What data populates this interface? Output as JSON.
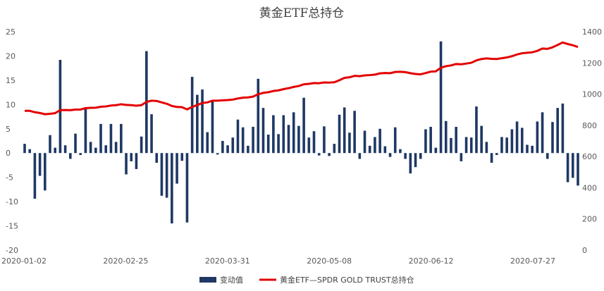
{
  "chart_data": {
    "type": "bar+line",
    "title": "黄金ETF总持仓",
    "x_tick_labels": [
      "2020-01-02",
      "2020-02-25",
      "2020-03-31",
      "2020-05-08",
      "2020-06-12",
      "2020-07-27"
    ],
    "y_left": {
      "min": -20,
      "max": 25,
      "step": 5,
      "ticks": [
        "-20",
        "-15",
        "-10",
        "-5",
        "0",
        "5",
        "10",
        "15",
        "20",
        "25"
      ]
    },
    "y_right": {
      "min": 0,
      "max": 1400,
      "step": 200,
      "ticks": [
        "0",
        "200",
        "400",
        "600",
        "800",
        "1000",
        "1200",
        "1400"
      ]
    },
    "series": [
      {
        "name": "变动值",
        "type": "bar",
        "axis": "left",
        "color": "#1f3864",
        "values": [
          1.9,
          0.8,
          -9.4,
          -4.7,
          -7.7,
          3.7,
          1.1,
          19.2,
          1.6,
          -1.2,
          4.0,
          -0.4,
          9.4,
          2.3,
          1.1,
          6.0,
          1.6,
          6.0,
          2.3,
          6.0,
          -4.4,
          -1.7,
          -3.3,
          3.4,
          21.0,
          8.0,
          -2.0,
          -8.8,
          -9.2,
          -14.5,
          -6.3,
          -1.6,
          -14.3,
          15.7,
          12.0,
          13.1,
          4.3,
          10.9,
          -0.3,
          2.5,
          1.6,
          3.2,
          6.9,
          5.3,
          1.5,
          5.4,
          15.3,
          9.3,
          3.8,
          7.8,
          3.9,
          7.8,
          5.8,
          8.4,
          5.6,
          11.4,
          3.2,
          4.5,
          -0.5,
          5.5,
          -0.6,
          1.9,
          7.9,
          9.4,
          4.2,
          8.7,
          -1.2,
          4.6,
          1.5,
          3.3,
          5.0,
          1.4,
          -0.8,
          5.3,
          0.8,
          -1.2,
          -4.2,
          -2.9,
          -1.2,
          4.9,
          5.4,
          1.1,
          23.0,
          6.6,
          3.1,
          5.4,
          -1.7,
          3.3,
          3.2,
          9.6,
          5.6,
          2.3,
          -2.0,
          -0.4,
          3.3,
          3.2,
          4.9,
          6.5,
          5.2,
          1.7,
          1.5,
          6.5,
          8.4,
          -1.2,
          6.4,
          9.3,
          10.2,
          -6.0,
          -5.1,
          -6.7
        ]
      },
      {
        "name": "黄金ETF—SPDR GOLD TRUST总持仓",
        "type": "line",
        "axis": "right",
        "color": "#e30000",
        "values": [
          893,
          893,
          884,
          879,
          871,
          874,
          878,
          897,
          898,
          897,
          901,
          901,
          910,
          912,
          913,
          919,
          921,
          927,
          929,
          935,
          931,
          929,
          926,
          929,
          950,
          958,
          956,
          947,
          938,
          924,
          918,
          916,
          902,
          918,
          930,
          943,
          947,
          958,
          958,
          960,
          962,
          965,
          972,
          977,
          979,
          984,
          999,
          1008,
          1012,
          1020,
          1024,
          1032,
          1038,
          1046,
          1052,
          1063,
          1066,
          1071,
          1070,
          1075,
          1074,
          1076,
          1089,
          1104,
          1108,
          1117,
          1115,
          1120,
          1122,
          1125,
          1133,
          1135,
          1134,
          1142,
          1143,
          1141,
          1134,
          1129,
          1127,
          1135,
          1144,
          1146,
          1169,
          1179,
          1184,
          1193,
          1191,
          1196,
          1201,
          1216,
          1225,
          1229,
          1226,
          1225,
          1230,
          1235,
          1243,
          1254,
          1262,
          1265,
          1268,
          1277,
          1292,
          1290,
          1300,
          1315,
          1331,
          1321,
          1313,
          1302
        ]
      }
    ],
    "legend_position": "bottom",
    "grid": false
  }
}
